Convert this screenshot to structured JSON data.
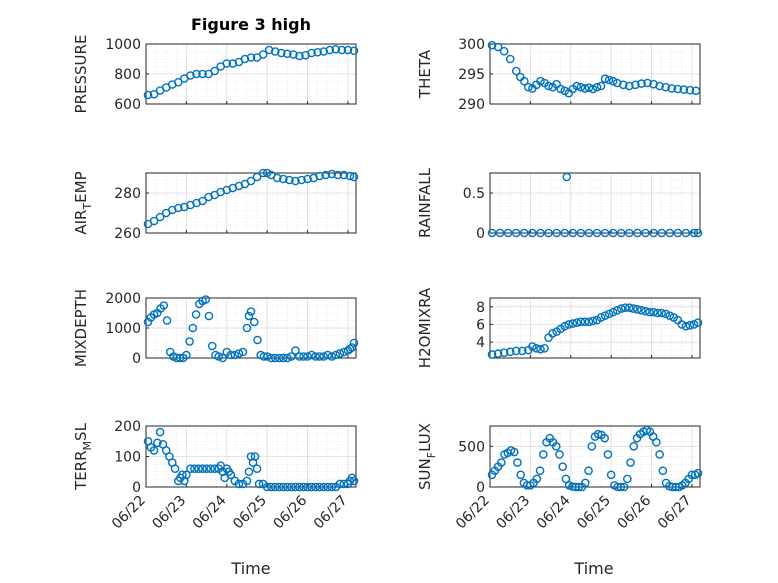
{
  "title": "Figure 3 high",
  "xlabel": "Time",
  "colors": {
    "marker": "#0072BD",
    "axis": "#262626",
    "grid": "#dcdcdc"
  },
  "chart_data": [
    {
      "type": "scatter",
      "ylabel": "PRESSURE",
      "yticks": [
        "600",
        "800",
        "1000"
      ],
      "ylim": [
        600,
        1000
      ],
      "xticks": [],
      "grid": "on",
      "x_days": [
        0.05,
        0.2,
        0.35,
        0.5,
        0.65,
        0.8,
        0.95,
        1.1,
        1.25,
        1.4,
        1.55,
        1.7,
        1.85,
        2.0,
        2.15,
        2.3,
        2.45,
        2.6,
        2.75,
        2.9,
        3.05,
        3.2,
        3.35,
        3.5,
        3.65,
        3.8,
        3.95,
        4.1,
        4.25,
        4.4,
        4.55,
        4.7,
        4.85,
        5.0,
        5.15
      ],
      "values": [
        660,
        665,
        690,
        710,
        730,
        745,
        770,
        790,
        800,
        800,
        800,
        820,
        850,
        870,
        870,
        880,
        900,
        910,
        910,
        930,
        960,
        950,
        940,
        935,
        930,
        920,
        925,
        940,
        945,
        950,
        960,
        965,
        960,
        960,
        955
      ]
    },
    {
      "type": "scatter",
      "ylabel": "THETA",
      "yticks": [
        "290",
        "295",
        "300"
      ],
      "ylim": [
        290,
        300
      ],
      "xticks": [],
      "grid": "on",
      "x_days": [
        0.05,
        0.2,
        0.35,
        0.5,
        0.65,
        0.75,
        0.85,
        0.95,
        1.05,
        1.15,
        1.25,
        1.35,
        1.45,
        1.55,
        1.65,
        1.75,
        1.85,
        1.95,
        2.05,
        2.15,
        2.25,
        2.35,
        2.45,
        2.55,
        2.65,
        2.75,
        2.85,
        2.95,
        3.05,
        3.15,
        3.3,
        3.45,
        3.6,
        3.75,
        3.9,
        4.05,
        4.2,
        4.35,
        4.5,
        4.65,
        4.8,
        4.95,
        5.1
      ],
      "values": [
        299.8,
        299.5,
        298.8,
        297.5,
        295.5,
        294.5,
        293.8,
        292.8,
        292.6,
        293.2,
        293.8,
        293.5,
        293.0,
        292.8,
        293.3,
        292.5,
        292.2,
        291.8,
        292.5,
        293.0,
        292.8,
        292.6,
        292.7,
        292.5,
        292.8,
        293.0,
        294.2,
        294.0,
        293.8,
        293.5,
        293.2,
        293.0,
        293.2,
        293.4,
        293.5,
        293.3,
        293.0,
        292.8,
        292.6,
        292.5,
        292.4,
        292.3,
        292.2
      ]
    },
    {
      "type": "scatter",
      "ylabel": "AIR_TEMP",
      "yticks": [
        "260",
        "280"
      ],
      "ylim": [
        260,
        290
      ],
      "xticks": [],
      "grid": "on",
      "x_days": [
        0.05,
        0.2,
        0.35,
        0.5,
        0.65,
        0.8,
        0.95,
        1.1,
        1.25,
        1.4,
        1.55,
        1.7,
        1.85,
        2.0,
        2.15,
        2.3,
        2.45,
        2.6,
        2.75,
        2.9,
        3.0,
        3.1,
        3.25,
        3.4,
        3.55,
        3.7,
        3.85,
        4.0,
        4.15,
        4.3,
        4.45,
        4.6,
        4.75,
        4.9,
        5.05,
        5.15
      ],
      "values": [
        264.5,
        266,
        268,
        270,
        271.5,
        272.5,
        273,
        274,
        275,
        276,
        278,
        279,
        280.5,
        281.5,
        282.5,
        283.5,
        284.5,
        286,
        288,
        291,
        290.5,
        289,
        287.5,
        287,
        286.5,
        286,
        286.5,
        287,
        287.5,
        288.5,
        289,
        289.5,
        289,
        289,
        288.5,
        288
      ]
    },
    {
      "type": "scatter",
      "ylabel": "RAINFALL",
      "yticks": [
        "0",
        "0.5"
      ],
      "ylim": [
        0,
        0.75
      ],
      "xticks": [],
      "grid": "on",
      "x_days": [
        0.05,
        0.25,
        0.45,
        0.65,
        0.85,
        1.05,
        1.25,
        1.45,
        1.65,
        1.85,
        2.05,
        2.25,
        2.45,
        2.65,
        2.85,
        3.05,
        3.25,
        3.45,
        3.65,
        3.85,
        4.05,
        4.25,
        4.45,
        4.65,
        4.85,
        5.05,
        5.15,
        1.9
      ],
      "values": [
        0,
        0,
        0,
        0,
        0,
        0,
        0,
        0,
        0,
        0,
        0,
        0,
        0,
        0,
        0,
        0,
        0,
        0,
        0,
        0,
        0,
        0,
        0,
        0,
        0,
        0,
        0,
        0.7
      ]
    },
    {
      "type": "scatter",
      "ylabel": "MIXDEPTH",
      "yticks": [
        "0",
        "1000",
        "2000"
      ],
      "ylim": [
        0,
        2000
      ],
      "xticks": [],
      "grid": "on",
      "x_days": [
        0.05,
        0.12,
        0.2,
        0.28,
        0.36,
        0.44,
        0.52,
        0.6,
        0.68,
        0.76,
        0.84,
        0.92,
        1.0,
        1.08,
        1.16,
        1.24,
        1.32,
        1.4,
        1.48,
        1.56,
        1.64,
        1.72,
        1.8,
        1.9,
        2.0,
        2.1,
        2.2,
        2.3,
        2.4,
        2.5,
        2.55,
        2.6,
        2.68,
        2.76,
        2.84,
        2.92,
        3.0,
        3.1,
        3.2,
        3.3,
        3.4,
        3.5,
        3.6,
        3.7,
        3.8,
        3.9,
        4.0,
        4.1,
        4.2,
        4.3,
        4.4,
        4.5,
        4.6,
        4.7,
        4.8,
        4.9,
        5.0,
        5.05,
        5.1,
        5.15
      ],
      "values": [
        1200,
        1350,
        1450,
        1500,
        1650,
        1750,
        1250,
        200,
        50,
        0,
        0,
        0,
        100,
        550,
        1000,
        1450,
        1800,
        1900,
        1950,
        1400,
        400,
        100,
        50,
        0,
        200,
        100,
        100,
        150,
        200,
        1000,
        1400,
        1550,
        1200,
        600,
        100,
        50,
        50,
        0,
        0,
        0,
        0,
        0,
        50,
        250,
        50,
        50,
        50,
        100,
        50,
        50,
        50,
        100,
        50,
        100,
        150,
        200,
        250,
        300,
        350,
        500
      ]
    },
    {
      "type": "scatter",
      "ylabel": "H2OMIXRA",
      "yticks": [
        "4",
        "6",
        "8"
      ],
      "ylim": [
        2.2,
        9
      ],
      "xticks": [],
      "grid": "on",
      "x_days": [
        0.05,
        0.2,
        0.35,
        0.5,
        0.65,
        0.8,
        0.95,
        1.05,
        1.15,
        1.25,
        1.35,
        1.45,
        1.55,
        1.65,
        1.75,
        1.85,
        1.95,
        2.05,
        2.15,
        2.25,
        2.35,
        2.45,
        2.55,
        2.65,
        2.75,
        2.85,
        2.95,
        3.05,
        3.15,
        3.25,
        3.35,
        3.45,
        3.55,
        3.65,
        3.75,
        3.85,
        3.95,
        4.05,
        4.15,
        4.25,
        4.35,
        4.45,
        4.55,
        4.65,
        4.75,
        4.85,
        4.95,
        5.05,
        5.15
      ],
      "values": [
        2.6,
        2.7,
        2.8,
        2.9,
        3.0,
        3.0,
        3.1,
        3.5,
        3.3,
        3.2,
        3.3,
        4.5,
        5.0,
        5.2,
        5.5,
        5.8,
        6.0,
        6.1,
        6.2,
        6.3,
        6.3,
        6.3,
        6.4,
        6.5,
        6.8,
        7.0,
        7.2,
        7.4,
        7.6,
        7.8,
        7.9,
        7.9,
        7.8,
        7.7,
        7.6,
        7.5,
        7.4,
        7.4,
        7.3,
        7.3,
        7.2,
        7.0,
        6.8,
        6.5,
        6.0,
        5.8,
        5.9,
        6.0,
        6.2
      ]
    },
    {
      "type": "scatter",
      "ylabel": "TERR_MSL",
      "yticks": [
        "0",
        "100",
        "200"
      ],
      "ylim": [
        0,
        200
      ],
      "xticks": [
        "06/22",
        "06/23",
        "06/24",
        "06/25",
        "06/26",
        "06/27"
      ],
      "grid": "on",
      "x_days": [
        0.05,
        0.12,
        0.2,
        0.28,
        0.35,
        0.42,
        0.5,
        0.58,
        0.65,
        0.72,
        0.8,
        0.85,
        0.9,
        0.95,
        1.0,
        1.1,
        1.2,
        1.3,
        1.4,
        1.5,
        1.6,
        1.7,
        1.8,
        1.85,
        1.9,
        1.95,
        2.0,
        2.05,
        2.1,
        2.2,
        2.3,
        2.4,
        2.5,
        2.55,
        2.6,
        2.65,
        2.7,
        2.75,
        2.8,
        2.9,
        3.0,
        3.1,
        3.2,
        3.3,
        3.4,
        3.5,
        3.6,
        3.7,
        3.8,
        3.9,
        4.0,
        4.1,
        4.2,
        4.3,
        4.4,
        4.5,
        4.6,
        4.7,
        4.8,
        4.9,
        5.0,
        5.05,
        5.1,
        5.15
      ],
      "values": [
        150,
        130,
        120,
        145,
        180,
        140,
        120,
        100,
        80,
        60,
        20,
        30,
        40,
        20,
        40,
        60,
        60,
        60,
        60,
        60,
        60,
        60,
        60,
        70,
        50,
        30,
        60,
        50,
        40,
        20,
        10,
        10,
        20,
        50,
        100,
        80,
        100,
        60,
        10,
        10,
        0,
        0,
        0,
        0,
        0,
        0,
        0,
        0,
        0,
        0,
        0,
        0,
        0,
        0,
        0,
        0,
        0,
        0,
        10,
        10,
        10,
        20,
        30,
        20
      ]
    },
    {
      "type": "scatter",
      "ylabel": "SUN_FLUX",
      "yticks": [
        "0",
        "500"
      ],
      "ylim": [
        0,
        750
      ],
      "xticks": [
        "06/22",
        "06/23",
        "06/24",
        "06/25",
        "06/26",
        "06/27"
      ],
      "grid": "on",
      "x_days": [
        0.05,
        0.12,
        0.2,
        0.28,
        0.36,
        0.44,
        0.52,
        0.6,
        0.68,
        0.76,
        0.84,
        0.92,
        1.0,
        1.08,
        1.16,
        1.24,
        1.32,
        1.4,
        1.48,
        1.56,
        1.64,
        1.72,
        1.8,
        1.88,
        1.96,
        2.04,
        2.12,
        2.2,
        2.28,
        2.36,
        2.44,
        2.52,
        2.6,
        2.68,
        2.76,
        2.84,
        2.92,
        3.0,
        3.08,
        3.16,
        3.24,
        3.32,
        3.4,
        3.48,
        3.56,
        3.64,
        3.72,
        3.8,
        3.88,
        3.96,
        4.04,
        4.12,
        4.2,
        4.28,
        4.36,
        4.44,
        4.52,
        4.6,
        4.68,
        4.76,
        4.84,
        4.92,
        5.0,
        5.08,
        5.15
      ],
      "values": [
        150,
        200,
        250,
        300,
        400,
        420,
        450,
        430,
        300,
        150,
        50,
        20,
        20,
        50,
        100,
        200,
        400,
        550,
        600,
        550,
        500,
        400,
        250,
        100,
        20,
        5,
        0,
        0,
        0,
        50,
        200,
        500,
        620,
        650,
        640,
        600,
        400,
        150,
        20,
        0,
        0,
        0,
        100,
        300,
        500,
        600,
        650,
        680,
        700,
        680,
        620,
        550,
        400,
        200,
        50,
        10,
        0,
        0,
        0,
        20,
        50,
        100,
        150,
        150,
        170
      ]
    }
  ]
}
